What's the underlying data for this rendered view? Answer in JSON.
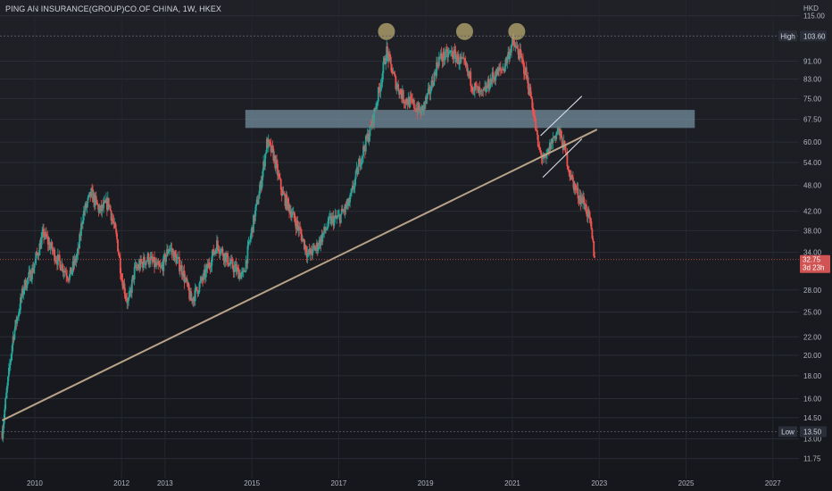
{
  "header": {
    "title": "PING AN INSURANCE(GROUP)CO.OF CHINA, 1W, HKEX",
    "unit": "HKD"
  },
  "chart_data": {
    "type": "candlestick",
    "scale": "log",
    "ylim": [
      11,
      118
    ],
    "xlim": [
      2009.2,
      2027.6
    ],
    "y_ticks": [
      11.75,
      13.0,
      14.5,
      16.0,
      18.0,
      20.0,
      22.0,
      25.0,
      28.0,
      34.0,
      38.0,
      42.0,
      48.0,
      54.0,
      60.0,
      67.5,
      75.0,
      83.0,
      91.0,
      115.0
    ],
    "x_ticks": [
      {
        "label": "2010",
        "year": 2010
      },
      {
        "label": "2012",
        "year": 2012
      },
      {
        "label": "2013",
        "year": 2013
      },
      {
        "label": "2015",
        "year": 2015
      },
      {
        "label": "2017",
        "year": 2017
      },
      {
        "label": "2019",
        "year": 2019
      },
      {
        "label": "2021",
        "year": 2021
      },
      {
        "label": "2023",
        "year": 2023
      },
      {
        "label": "2025",
        "year": 2025
      },
      {
        "label": "2027",
        "year": 2027
      }
    ],
    "high": {
      "label": "High",
      "value": 103.6,
      "value_label": "103.60"
    },
    "low": {
      "label": "Low",
      "value": 13.5,
      "value_label": "13.50"
    },
    "last": {
      "value": 32.75,
      "value_label": "32.75",
      "countdown": "3d 23h"
    },
    "price_path": [
      [
        2009.25,
        13.5
      ],
      [
        2009.5,
        22.0
      ],
      [
        2009.75,
        28.5
      ],
      [
        2009.95,
        31.0
      ],
      [
        2010.2,
        37.5
      ],
      [
        2010.5,
        33.0
      ],
      [
        2010.8,
        30.0
      ],
      [
        2011.0,
        34.0
      ],
      [
        2011.1,
        41.0
      ],
      [
        2011.3,
        46.0
      ],
      [
        2011.5,
        42.0
      ],
      [
        2011.7,
        44.0
      ],
      [
        2011.9,
        36.0
      ],
      [
        2012.0,
        30.0
      ],
      [
        2012.15,
        26.0
      ],
      [
        2012.3,
        31.0
      ],
      [
        2012.6,
        33.0
      ],
      [
        2012.9,
        31.0
      ],
      [
        2013.1,
        35.0
      ],
      [
        2013.4,
        31.0
      ],
      [
        2013.6,
        26.5
      ],
      [
        2013.9,
        30.0
      ],
      [
        2014.2,
        35.5
      ],
      [
        2014.5,
        32.0
      ],
      [
        2014.8,
        30.0
      ],
      [
        2014.95,
        36.0
      ],
      [
        2015.2,
        48.0
      ],
      [
        2015.35,
        60.0
      ],
      [
        2015.5,
        56.0
      ],
      [
        2015.7,
        46.0
      ],
      [
        2015.9,
        42.0
      ],
      [
        2016.1,
        38.0
      ],
      [
        2016.3,
        33.5
      ],
      [
        2016.5,
        35.0
      ],
      [
        2016.8,
        40.0
      ],
      [
        2017.0,
        40.5
      ],
      [
        2017.25,
        44.0
      ],
      [
        2017.5,
        55.0
      ],
      [
        2017.75,
        65.0
      ],
      [
        2017.95,
        80.0
      ],
      [
        2018.1,
        96.0
      ],
      [
        2018.3,
        82.0
      ],
      [
        2018.5,
        75.0
      ],
      [
        2018.7,
        73.0
      ],
      [
        2018.9,
        70.0
      ],
      [
        2019.1,
        78.0
      ],
      [
        2019.3,
        92.0
      ],
      [
        2019.6,
        95.0
      ],
      [
        2019.9,
        89.0
      ],
      [
        2020.1,
        80.0
      ],
      [
        2020.3,
        76.0
      ],
      [
        2020.55,
        84.0
      ],
      [
        2020.8,
        88.0
      ],
      [
        2021.0,
        100.0
      ],
      [
        2021.15,
        95.0
      ],
      [
        2021.3,
        86.0
      ],
      [
        2021.45,
        74.0
      ],
      [
        2021.6,
        58.0
      ],
      [
        2021.75,
        54.0
      ],
      [
        2021.9,
        60.0
      ],
      [
        2022.05,
        64.0
      ],
      [
        2022.2,
        58.0
      ],
      [
        2022.35,
        50.0
      ],
      [
        2022.5,
        46.0
      ],
      [
        2022.65,
        44.0
      ],
      [
        2022.78,
        40.0
      ],
      [
        2022.86,
        35.0
      ],
      [
        2022.9,
        32.75
      ]
    ],
    "annotations": {
      "resistance_zone": {
        "x_from": 2014.85,
        "x_to": 2025.2,
        "y_from": 64.5,
        "y_to": 70.8
      },
      "trendline": {
        "from": [
          2009.25,
          14.3
        ],
        "to": [
          2022.95,
          64.0
        ]
      },
      "channel_upper": {
        "from": [
          2021.65,
          62.0
        ],
        "to": [
          2022.6,
          76.0
        ]
      },
      "channel_lower": {
        "from": [
          2021.7,
          50.0
        ],
        "to": [
          2022.6,
          61.0
        ]
      },
      "tops": [
        {
          "x": 2018.1,
          "y": 106.0
        },
        {
          "x": 2019.9,
          "y": 106.0
        },
        {
          "x": 2021.1,
          "y": 106.0
        }
      ]
    }
  },
  "colors": {
    "up": "#26a69a",
    "down": "#ef5350",
    "zone": "#8fb3c9",
    "trendline": "#b8a389",
    "channel": "#d8dce4",
    "marker": "#a89a68",
    "last_bg": "#d05454",
    "axis_text": "#b2b5be",
    "tag_bg": "#2a2e39"
  }
}
